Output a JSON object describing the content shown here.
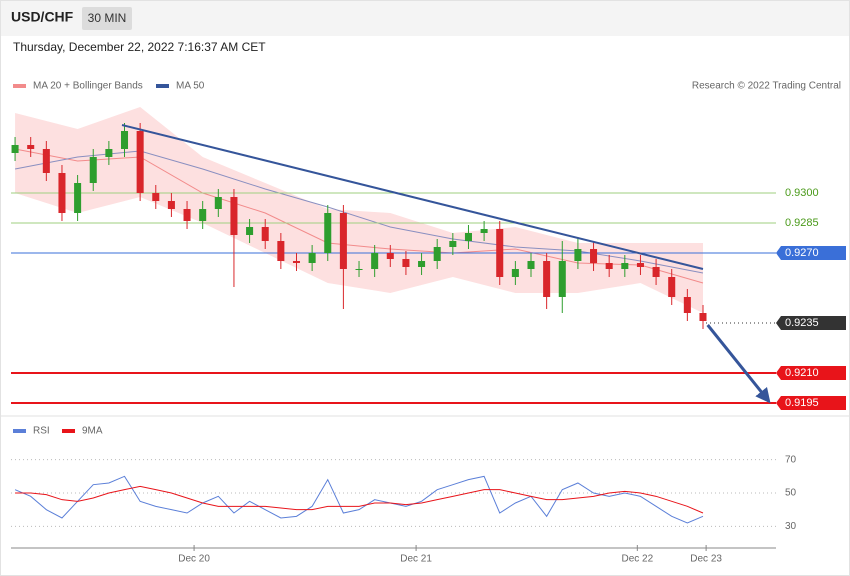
{
  "header": {
    "symbol": "USD/CHF",
    "interval": "30 MIN",
    "timestamp": "Thursday, December 22, 2022 7:16:37 AM CET"
  },
  "chart_data": [
    {
      "type": "candlestick",
      "legend": [
        {
          "name": "MA 20 + Bollinger Bands",
          "color": "#f28b8b"
        },
        {
          "name": "MA 50",
          "color": "#35559a"
        }
      ],
      "credit": "Research © 2022 Trading Central",
      "up_color": "#2e9e2e",
      "down_color": "#d9262b",
      "open": [
        0.932,
        0.9324,
        0.9322,
        0.931,
        0.929,
        0.9305,
        0.9318,
        0.9322,
        0.9331,
        0.93,
        0.9296,
        0.9292,
        0.9286,
        0.9292,
        0.9298,
        0.9279,
        0.9283,
        0.9276,
        0.9266,
        0.9265,
        0.927,
        0.929,
        0.9262,
        0.9262,
        0.927,
        0.9267,
        0.9263,
        0.9266,
        0.9273,
        0.9276,
        0.928,
        0.9282,
        0.9258,
        0.9262,
        0.9266,
        0.9248,
        0.9266,
        0.9272,
        0.9265,
        0.9262,
        0.9265,
        0.9263,
        0.9258,
        0.9248,
        0.924
      ],
      "high": [
        0.9328,
        0.9328,
        0.9326,
        0.9314,
        0.9309,
        0.9322,
        0.9326,
        0.9335,
        0.9335,
        0.9304,
        0.93,
        0.9296,
        0.9296,
        0.9302,
        0.9302,
        0.9287,
        0.9287,
        0.928,
        0.927,
        0.9274,
        0.9294,
        0.9294,
        0.9266,
        0.9274,
        0.9274,
        0.9271,
        0.927,
        0.9277,
        0.928,
        0.9284,
        0.9286,
        0.9286,
        0.9266,
        0.927,
        0.927,
        0.9276,
        0.9278,
        0.9276,
        0.9269,
        0.9269,
        0.9269,
        0.9267,
        0.9262,
        0.9252,
        0.9244
      ],
      "low": [
        0.9316,
        0.9318,
        0.9306,
        0.9286,
        0.9286,
        0.9301,
        0.9314,
        0.9318,
        0.9296,
        0.9292,
        0.9288,
        0.9282,
        0.9282,
        0.9288,
        0.9253,
        0.9275,
        0.9272,
        0.9262,
        0.9261,
        0.9261,
        0.9266,
        0.9242,
        0.9258,
        0.9258,
        0.9263,
        0.9259,
        0.9259,
        0.9262,
        0.9269,
        0.9272,
        0.9276,
        0.9254,
        0.9254,
        0.9258,
        0.9242,
        0.924,
        0.9262,
        0.9261,
        0.9258,
        0.9258,
        0.9259,
        0.9254,
        0.9244,
        0.9236,
        0.9232
      ],
      "close": [
        0.9324,
        0.9322,
        0.931,
        0.929,
        0.9305,
        0.9318,
        0.9322,
        0.9331,
        0.93,
        0.9296,
        0.9292,
        0.9286,
        0.9292,
        0.9298,
        0.9279,
        0.9283,
        0.9276,
        0.9266,
        0.9265,
        0.927,
        0.929,
        0.9262,
        0.9262,
        0.927,
        0.9267,
        0.9263,
        0.9266,
        0.9273,
        0.9276,
        0.928,
        0.9282,
        0.9258,
        0.9262,
        0.9266,
        0.9248,
        0.9266,
        0.9272,
        0.9265,
        0.9262,
        0.9265,
        0.9263,
        0.9258,
        0.9248,
        0.924,
        0.9236
      ],
      "ma20": {
        "color": "#f28b8b",
        "x": [
          0,
          4,
          8,
          12,
          16,
          20,
          24,
          28,
          32,
          36,
          40,
          44
        ],
        "values": [
          0.9322,
          0.9316,
          0.9318,
          0.93,
          0.929,
          0.9275,
          0.9272,
          0.927,
          0.9272,
          0.9265,
          0.9264,
          0.9255
        ]
      },
      "band_upper": {
        "color": "#fde0e0",
        "x": [
          0,
          4,
          8,
          12,
          16,
          20,
          24,
          28,
          32,
          36,
          40,
          44
        ],
        "values": [
          0.934,
          0.9332,
          0.9343,
          0.9318,
          0.9305,
          0.9292,
          0.929,
          0.928,
          0.9283,
          0.9275,
          0.9275,
          0.9275
        ]
      },
      "band_lower": {
        "color": "#fde0e0",
        "x": [
          0,
          4,
          8,
          12,
          16,
          20,
          24,
          28,
          32,
          36,
          40,
          44
        ],
        "values": [
          0.93,
          0.929,
          0.9298,
          0.9285,
          0.927,
          0.9255,
          0.925,
          0.9258,
          0.925,
          0.925,
          0.9255,
          0.924
        ]
      },
      "ma50": {
        "color": "#8a8fc0",
        "x": [
          0,
          4,
          8,
          12,
          16,
          20,
          24,
          28,
          32,
          36,
          40,
          44
        ],
        "values": [
          0.9312,
          0.9318,
          0.9321,
          0.9312,
          0.9302,
          0.9293,
          0.9283,
          0.9277,
          0.9273,
          0.9271,
          0.9266,
          0.926
        ]
      },
      "trendline": {
        "color": "#35559a",
        "x": [
          6.84,
          44
        ],
        "values": [
          0.9334,
          0.9262
        ]
      },
      "arrow": {
        "color": "#35559a",
        "x": [
          44.3,
          48.2
        ],
        "values": [
          0.9234,
          0.9196
        ]
      },
      "levels": [
        {
          "value": 0.93,
          "label": "0.9300",
          "color": "#9fcf7f",
          "boxed": false,
          "text_color": "#4a9a1a"
        },
        {
          "value": 0.9285,
          "label": "0.9285",
          "color": "#9fcf7f",
          "boxed": false,
          "text_color": "#4a9a1a"
        },
        {
          "value": 0.927,
          "label": "0.9270",
          "color": "#3a6fd8",
          "boxed": true,
          "text_color": "#ffffff"
        },
        {
          "value": 0.9235,
          "label": "0.9235",
          "color": "#333333",
          "boxed": true,
          "dotted": true,
          "text_color": "#ffffff"
        },
        {
          "value": 0.921,
          "label": "0.9210",
          "color": "#e8141a",
          "boxed": true,
          "text_color": "#ffffff"
        },
        {
          "value": 0.9195,
          "label": "0.9195",
          "color": "#e8141a",
          "boxed": true,
          "text_color": "#ffffff"
        }
      ],
      "xlim": [
        -0.26,
        48.67
      ],
      "ylim": [
        0.91915,
        0.93465
      ],
      "xticks": [
        {
          "value": 11.45,
          "label": "Dec 20"
        },
        {
          "value": 25.65,
          "label": "Dec 21"
        },
        {
          "value": 39.8,
          "label": "Dec 22"
        },
        {
          "value": 44.2,
          "label": "Dec 23"
        }
      ]
    },
    {
      "type": "line",
      "series": [
        {
          "name": "RSI",
          "color": "#5b7fd8",
          "values": [
            52,
            48,
            40,
            35,
            45,
            55,
            56,
            60,
            45,
            42,
            40,
            38,
            44,
            48,
            38,
            45,
            40,
            35,
            36,
            42,
            58,
            38,
            40,
            46,
            44,
            42,
            45,
            52,
            55,
            58,
            60,
            38,
            44,
            48,
            36,
            52,
            56,
            50,
            48,
            50,
            48,
            42,
            36,
            32,
            36
          ]
        },
        {
          "name": "9MA",
          "color": "#e8141a",
          "values": [
            50,
            50,
            49,
            46,
            45,
            47,
            50,
            52,
            54,
            52,
            50,
            47,
            44,
            42,
            42,
            42,
            42,
            41,
            40,
            40,
            42,
            42,
            42,
            44,
            44,
            43,
            44,
            46,
            48,
            50,
            52,
            52,
            50,
            48,
            46,
            46,
            47,
            48,
            50,
            51,
            50,
            48,
            45,
            42,
            38
          ]
        }
      ],
      "ylim": [
        20,
        80
      ],
      "yticks": [
        70,
        50,
        30
      ],
      "grid": true
    }
  ]
}
